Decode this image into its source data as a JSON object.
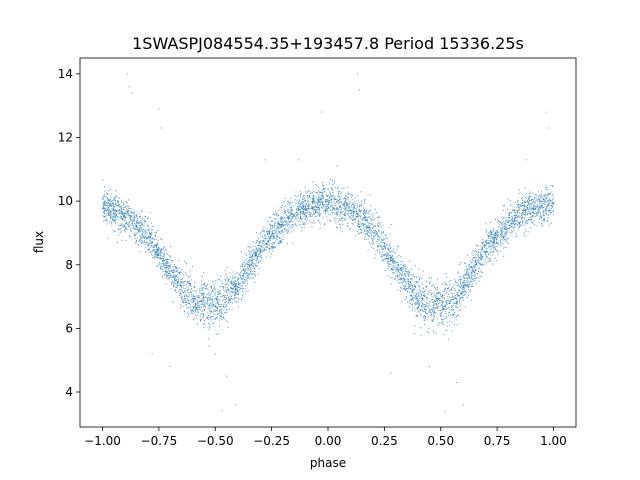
{
  "chart_data": {
    "type": "scatter",
    "title": "1SWASPJ084554.35+193457.8 Period 15336.25s",
    "xlabel": "phase",
    "ylabel": "flux",
    "xlim": [
      -1.1,
      1.1
    ],
    "ylim": [
      2.9,
      14.5
    ],
    "xticks": [
      -1.0,
      -0.75,
      -0.5,
      -0.25,
      0.0,
      0.25,
      0.5,
      0.75,
      1.0
    ],
    "xtick_labels": [
      "−1.00",
      "−0.75",
      "−0.50",
      "−0.25",
      "0.00",
      "0.25",
      "0.50",
      "0.75",
      "1.00"
    ],
    "yticks": [
      4,
      6,
      8,
      10,
      12,
      14
    ],
    "ytick_labels": [
      "4",
      "6",
      "8",
      "10",
      "12",
      "14"
    ],
    "grid": false,
    "legend": "none",
    "marker_color": "#1f77b4",
    "series": [
      {
        "phase_range": [
          -1.0,
          1.0
        ],
        "profile": {
          "x": [
            -1.0,
            -0.9,
            -0.8,
            -0.7,
            -0.6,
            -0.55,
            -0.5,
            -0.4,
            -0.3,
            -0.2,
            -0.1,
            0.0,
            0.1,
            0.2,
            0.3,
            0.4,
            0.45,
            0.5,
            0.55,
            0.6,
            0.7,
            0.8,
            0.9,
            1.0
          ],
          "y": [
            9.9,
            9.5,
            8.9,
            7.8,
            6.9,
            6.75,
            6.7,
            7.3,
            8.5,
            9.3,
            9.8,
            10.0,
            9.7,
            9.1,
            8.0,
            6.9,
            6.75,
            6.7,
            6.8,
            7.3,
            8.5,
            9.3,
            9.8,
            9.9
          ]
        },
        "scatter_sigma": 0.28,
        "outliers": [
          {
            "x": -0.89,
            "y": 14.0
          },
          {
            "x": -0.88,
            "y": 13.6
          },
          {
            "x": -0.87,
            "y": 13.4
          },
          {
            "x": -0.75,
            "y": 12.9
          },
          {
            "x": -0.74,
            "y": 12.3
          },
          {
            "x": 0.13,
            "y": 14.0
          },
          {
            "x": 0.14,
            "y": 13.5
          },
          {
            "x": -0.03,
            "y": 12.8
          },
          {
            "x": 0.97,
            "y": 12.8
          },
          {
            "x": 0.98,
            "y": 12.3
          },
          {
            "x": -0.28,
            "y": 11.3
          },
          {
            "x": -0.13,
            "y": 11.3
          },
          {
            "x": 0.04,
            "y": 11.1
          },
          {
            "x": 0.88,
            "y": 11.3
          },
          {
            "x": -0.5,
            "y": 5.2
          },
          {
            "x": -0.45,
            "y": 4.5
          },
          {
            "x": -0.47,
            "y": 3.4
          },
          {
            "x": -0.41,
            "y": 3.6
          },
          {
            "x": 0.45,
            "y": 4.8
          },
          {
            "x": 0.52,
            "y": 3.4
          },
          {
            "x": 0.57,
            "y": 4.3
          },
          {
            "x": 0.6,
            "y": 3.6
          },
          {
            "x": -0.78,
            "y": 5.2
          },
          {
            "x": -0.7,
            "y": 4.8
          },
          {
            "x": 0.28,
            "y": 4.6
          }
        ]
      }
    ]
  }
}
